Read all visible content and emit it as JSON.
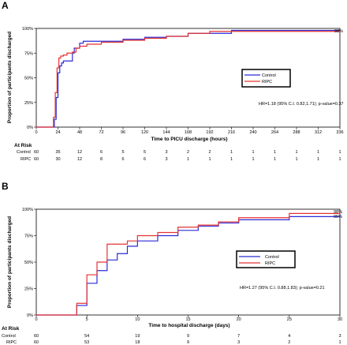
{
  "panels": [
    {
      "letter": "A",
      "xlabel": "Time to PICU discharge (hours)",
      "ylabel": "Proportion of participants discharged",
      "hr_text": "HR=1.18 (95% C.I. 0.82,1.71);  p-value=0.37",
      "end_label": "98%",
      "atrisk_title": "At Risk",
      "atrisk_rows": [
        {
          "label": "Control",
          "color": "#2b2bd6",
          "values": [
            "60",
            "35",
            "12",
            "6",
            "5",
            "5",
            "3",
            "2",
            "2",
            "1",
            "1",
            "1",
            "1",
            "1",
            "1"
          ]
        },
        {
          "label": "RIPC",
          "color": "#e53333",
          "values": [
            "60",
            "30",
            "12",
            "8",
            "6",
            "6",
            "3",
            "1",
            "1",
            "1",
            "1",
            "1",
            "1",
            "1",
            "1"
          ]
        }
      ]
    },
    {
      "letter": "B",
      "xlabel": "Time to hospital discharge (days)",
      "ylabel": "Proportion of participants discharged",
      "hr_text": "HR=1.27 (95% C.I. 0.88,1.83);  p-value=0.21",
      "end_labels": [
        "98%",
        "95%"
      ],
      "atrisk_title": "At Risk",
      "atrisk_rows": [
        {
          "label": "Control",
          "color": "#2b2bd6",
          "values": [
            "60",
            "54",
            "19",
            "9",
            "7",
            "4",
            "3"
          ]
        },
        {
          "label": "RIPC",
          "color": "#e53333",
          "values": [
            "60",
            "53",
            "18",
            "9",
            "3",
            "2",
            "1"
          ]
        }
      ]
    }
  ],
  "chart_data": [
    {
      "type": "line",
      "step": true,
      "x_ticks": [
        "0",
        "24",
        "48",
        "72",
        "96",
        "120",
        "144",
        "168",
        "192",
        "216",
        "240",
        "264",
        "288",
        "312",
        "336"
      ],
      "y_ticks": [
        "0%",
        "25%",
        "50%",
        "75%",
        "100%"
      ],
      "xlim": [
        0,
        336
      ],
      "ylim": [
        0,
        1
      ],
      "xlabel": "Time to PICU discharge (hours)",
      "ylabel": "Proportion of participants discharged",
      "legend": [
        "Control",
        "RIPC"
      ],
      "legend_position": "right",
      "series": [
        {
          "name": "Control",
          "color": "#2b2bd6",
          "x": [
            0,
            18,
            20,
            22,
            24,
            26,
            28,
            30,
            36,
            40,
            42,
            48,
            52,
            72,
            96,
            120,
            144,
            168,
            216,
            336
          ],
          "y": [
            0,
            0,
            0.08,
            0.3,
            0.55,
            0.62,
            0.65,
            0.67,
            0.67,
            0.75,
            0.8,
            0.85,
            0.87,
            0.87,
            0.89,
            0.91,
            0.92,
            0.95,
            0.98,
            0.98
          ]
        },
        {
          "name": "RIPC",
          "color": "#e53333",
          "x": [
            0,
            16,
            19,
            21,
            23,
            25,
            27,
            30,
            34,
            40,
            44,
            48,
            56,
            72,
            96,
            120,
            144,
            168,
            192,
            336
          ],
          "y": [
            0,
            0,
            0.1,
            0.35,
            0.6,
            0.7,
            0.72,
            0.73,
            0.75,
            0.76,
            0.8,
            0.82,
            0.84,
            0.86,
            0.88,
            0.9,
            0.92,
            0.95,
            0.97,
            0.98
          ]
        }
      ]
    },
    {
      "type": "line",
      "step": true,
      "x_ticks": [
        "0",
        "5",
        "10",
        "15",
        "20",
        "25",
        "30"
      ],
      "y_ticks": [
        "0%",
        "25%",
        "50%",
        "75%",
        "100%"
      ],
      "xlim": [
        0,
        30
      ],
      "ylim": [
        0,
        1
      ],
      "xlabel": "Time to hospital discharge (days)",
      "ylabel": "Proportion of participants discharged",
      "legend": [
        "Control",
        "RIPC"
      ],
      "legend_position": "right",
      "series": [
        {
          "name": "Control",
          "color": "#2b2bd6",
          "x": [
            0,
            4,
            5,
            6,
            7,
            8,
            9,
            10,
            12,
            14,
            16,
            18,
            20,
            25,
            30
          ],
          "y": [
            0,
            0.09,
            0.3,
            0.42,
            0.52,
            0.58,
            0.65,
            0.7,
            0.75,
            0.8,
            0.84,
            0.87,
            0.9,
            0.93,
            0.95
          ]
        },
        {
          "name": "RIPC",
          "color": "#e53333",
          "x": [
            0,
            4,
            5,
            6,
            7,
            8,
            9,
            10,
            12,
            14,
            16,
            18,
            20,
            25,
            30
          ],
          "y": [
            0,
            0.11,
            0.38,
            0.5,
            0.67,
            0.67,
            0.7,
            0.75,
            0.78,
            0.83,
            0.85,
            0.88,
            0.92,
            0.96,
            0.98
          ]
        }
      ]
    }
  ]
}
